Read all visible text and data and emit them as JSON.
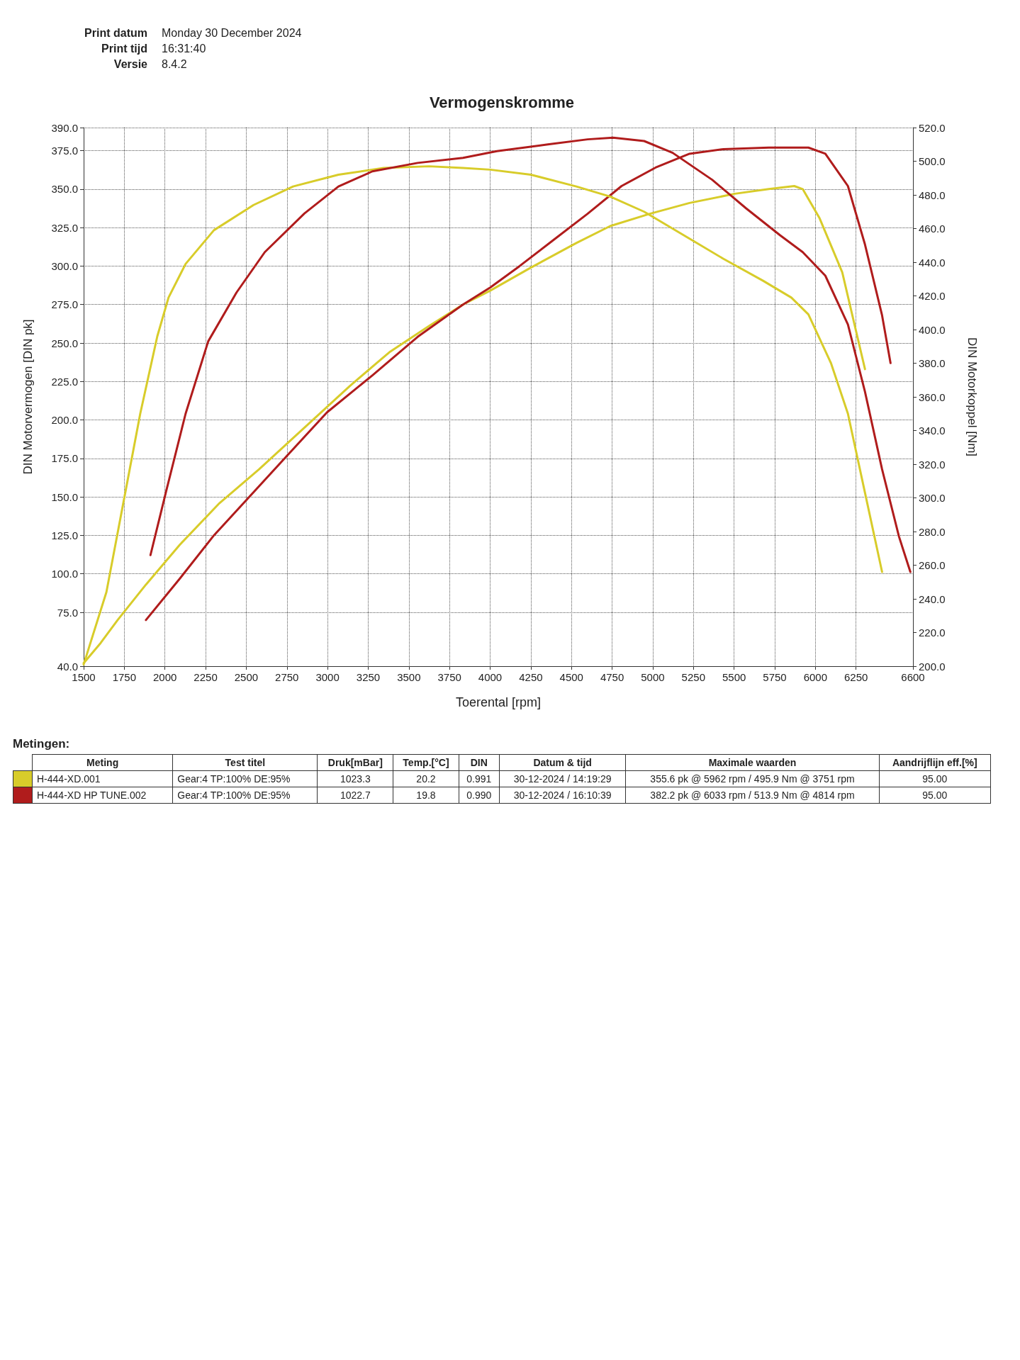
{
  "chart_data": {
    "type": "line",
    "title": "Vermogenskromme",
    "xlabel": "Toerental [rpm]",
    "ylabel": "DIN Motorvermogen [DIN pk]",
    "y2label": "DIN Motorkoppel [Nm]",
    "xlim": [
      1500,
      6600
    ],
    "xticks": [
      1500,
      1750,
      2000,
      2250,
      2500,
      2750,
      3000,
      3250,
      3500,
      3750,
      4000,
      4250,
      4500,
      4750,
      5000,
      5250,
      5500,
      5750,
      6000,
      6250,
      6600
    ],
    "ylim": [
      40,
      390
    ],
    "yticks": [
      {
        "value": 40,
        "label": "40.0"
      },
      {
        "value": 75,
        "label": "75.0"
      },
      {
        "value": 100,
        "label": "100.0"
      },
      {
        "value": 125,
        "label": "125.0"
      },
      {
        "value": 150,
        "label": "150.0"
      },
      {
        "value": 175,
        "label": "175.0"
      },
      {
        "value": 200,
        "label": "200.0"
      },
      {
        "value": 225,
        "label": "225.0"
      },
      {
        "value": 250,
        "label": "250.0"
      },
      {
        "value": 275,
        "label": "275.0"
      },
      {
        "value": 300,
        "label": "300.0"
      },
      {
        "value": 325,
        "label": "325.0"
      },
      {
        "value": 350,
        "label": "350.0"
      },
      {
        "value": 375,
        "label": "375.0"
      },
      {
        "value": 390,
        "label": "390.0"
      }
    ],
    "y2lim": [
      200,
      520
    ],
    "y2ticks": [
      {
        "value": 200,
        "label": "200.0"
      },
      {
        "value": 220,
        "label": "220.0"
      },
      {
        "value": 240,
        "label": "240.0"
      },
      {
        "value": 260,
        "label": "260.0"
      },
      {
        "value": 280,
        "label": "280.0"
      },
      {
        "value": 300,
        "label": "300.0"
      },
      {
        "value": 320,
        "label": "320.0"
      },
      {
        "value": 340,
        "label": "340.0"
      },
      {
        "value": 360,
        "label": "360.0"
      },
      {
        "value": 380,
        "label": "380.0"
      },
      {
        "value": 400,
        "label": "400.0"
      },
      {
        "value": 420,
        "label": "420.0"
      },
      {
        "value": 440,
        "label": "440.0"
      },
      {
        "value": 460,
        "label": "460.0"
      },
      {
        "value": 480,
        "label": "480.0"
      },
      {
        "value": 500,
        "label": "500.0"
      },
      {
        "value": 520,
        "label": "520.0"
      }
    ],
    "grid": true,
    "legend": "bottom",
    "series": [
      {
        "name": "H-444-XD.001",
        "color": "#d8cc2a",
        "x": [
          1500,
          1604,
          1709,
          1883,
          2092,
          2336,
          2579,
          2858,
          3136,
          3380,
          3624,
          3833,
          4000,
          4250,
          4530,
          4738,
          4982,
          5226,
          5505,
          5713,
          5870,
          5922,
          6026,
          6165,
          6305
        ],
        "values": [
          42,
          55,
          70,
          93,
          119,
          146,
          168,
          195,
          222,
          244,
          261,
          275,
          284,
          299,
          315,
          326,
          334,
          341,
          347,
          350,
          352,
          350,
          331,
          296,
          233
        ]
      },
      {
        "name": "H-444-XD HP TUNE.002",
        "color": "#b01c1c",
        "x": [
          1883,
          2092,
          2301,
          2510,
          2753,
          2997,
          3276,
          3554,
          3833,
          4000,
          4181,
          4390,
          4599,
          4808,
          5017,
          5226,
          5435,
          5713,
          5957,
          6061,
          6200,
          6305,
          6410,
          6462
        ],
        "values": [
          70,
          97,
          125,
          149,
          177,
          205,
          229,
          254,
          275,
          286,
          300,
          317,
          334,
          352,
          364,
          373,
          376,
          377,
          377,
          373,
          352,
          314,
          268,
          237
        ]
      },
      {
        "color": "#d8cc2a",
        "axis": "y2",
        "x": [
          1500,
          1640,
          1744,
          1848,
          1953,
          2022,
          2127,
          2301,
          2545,
          2788,
          3067,
          3345,
          3624,
          3833,
          4000,
          4250,
          4530,
          4738,
          4947,
          5226,
          5435,
          5678,
          5852,
          5957,
          6096,
          6200,
          6305,
          6410
        ],
        "values": [
          201,
          244,
          297,
          350,
          396,
          419,
          439,
          459,
          474,
          485,
          492,
          496,
          497,
          496,
          495,
          492,
          485,
          479,
          470,
          454,
          442,
          429,
          419,
          409,
          380,
          350,
          303,
          256
        ]
      },
      {
        "color": "#b01c1c",
        "axis": "y2",
        "x": [
          1911,
          2005,
          2127,
          2266,
          2440,
          2614,
          2858,
          3067,
          3276,
          3554,
          3833,
          4042,
          4355,
          4599,
          4756,
          4947,
          5122,
          5365,
          5574,
          5783,
          5922,
          6061,
          6200,
          6305,
          6410,
          6514,
          6584
        ],
        "values": [
          266,
          303,
          350,
          393,
          422,
          446,
          469,
          485,
          494,
          499,
          502,
          506,
          510,
          513,
          514,
          512,
          505,
          489,
          472,
          456,
          446,
          432,
          403,
          363,
          317,
          277,
          256
        ]
      }
    ],
    "annotations": [
      "Print datum",
      "Monday 30 December 2024",
      "Print tijd",
      "16:31:40",
      "Versie",
      "8.4.2",
      "Metingen:",
      "Meting",
      "Test titel",
      "Druk[mBar]",
      "Temp.[°C]",
      "DIN",
      "Datum & tijd",
      "Maximale waarden",
      "Aandrijflijn eff.[%]",
      "Gear:4 TP:100% DE:95%",
      "1023.3",
      "20.2",
      "0.991",
      "30-12-2024 / 14:19:29",
      "355.6 pk @ 5962 rpm / 495.9 Nm @ 3751 rpm",
      "95.00",
      "Gear:4 TP:100% DE:95%",
      "1022.7",
      "19.8",
      "0.990",
      "30-12-2024 / 16:10:39",
      "382.2 pk @ 6033 rpm / 513.9 Nm @ 4814 rpm",
      "95.00"
    ]
  }
}
